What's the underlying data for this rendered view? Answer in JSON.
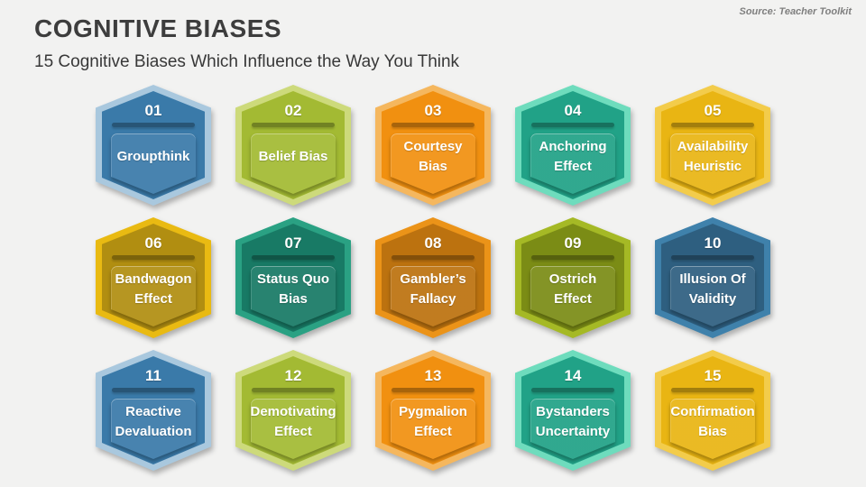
{
  "slide": {
    "title": "COGNITIVE BIASES",
    "subtitle": "15 Cognitive Biases Which Influence the Way You Think",
    "source": "Source: Teacher Toolkit"
  },
  "badges": [
    {
      "number": "01",
      "label": "Groupthink",
      "light": "#a9c8de",
      "main": "#3a7aa9"
    },
    {
      "number": "02",
      "label": "Belief Bias",
      "light": "#cdda7b",
      "main": "#a3ba33"
    },
    {
      "number": "03",
      "label": "Courtesy Bias",
      "light": "#f5b75e",
      "main": "#f19010"
    },
    {
      "number": "04",
      "label": "Anchoring Effect",
      "light": "#6edcbd",
      "main": "#21a287"
    },
    {
      "number": "05",
      "label": "Availability Heuristic",
      "light": "#f3cc4b",
      "main": "#e9b513"
    },
    {
      "number": "06",
      "label": "Bandwagon Effect",
      "light": "#e9ba12",
      "main": "#b18e11"
    },
    {
      "number": "07",
      "label": "Status Quo Bias",
      "light": "#2aa183",
      "main": "#187a65"
    },
    {
      "number": "08",
      "label": "Gambler’s Fallacy",
      "light": "#eb9318",
      "main": "#bc720f"
    },
    {
      "number": "09",
      "label": "Ostrich Effect",
      "light": "#a5b925",
      "main": "#7b8c15"
    },
    {
      "number": "10",
      "label": "Illusion Of Validity",
      "light": "#3f81ab",
      "main": "#2e5f80"
    },
    {
      "number": "11",
      "label": "Reactive Devaluation",
      "light": "#a9c8de",
      "main": "#3a7aa9"
    },
    {
      "number": "12",
      "label": "Demotivating Effect",
      "light": "#cdda7b",
      "main": "#a3ba33"
    },
    {
      "number": "13",
      "label": "Pygmalion Effect",
      "light": "#f5b75e",
      "main": "#f19010"
    },
    {
      "number": "14",
      "label": "Bystanders Uncertainty",
      "light": "#6edcbd",
      "main": "#21a287"
    },
    {
      "number": "15",
      "label": "Confirmation Bias",
      "light": "#f3cc4b",
      "main": "#e9b513"
    }
  ]
}
